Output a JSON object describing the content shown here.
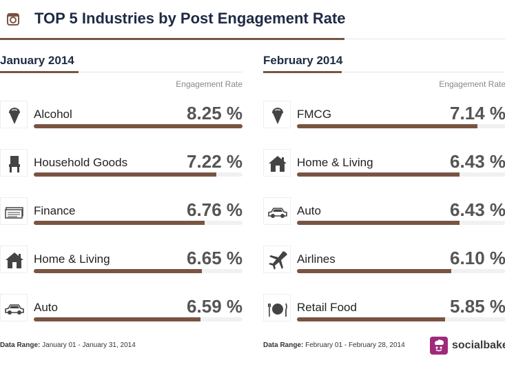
{
  "header": {
    "title": "TOP 5 Industries by Post Engagement Rate",
    "icon": "instagram-icon"
  },
  "column_label": "Engagement Rate",
  "chart_data": [
    {
      "type": "bar",
      "title": "January 2014",
      "ylabel": "Engagement Rate",
      "unit": "%",
      "ylim": [
        0,
        8.25
      ],
      "categories": [
        "Alcohol",
        "Household Goods",
        "Finance",
        "Home & Living",
        "Auto"
      ],
      "values": [
        8.25,
        7.22,
        6.76,
        6.65,
        6.59
      ],
      "value_labels": [
        "8.25 %",
        "7.22 %",
        "6.76 %",
        "6.65 %",
        "6.59 %"
      ],
      "icons": [
        "ice-cream-icon",
        "chair-icon",
        "money-icon",
        "house-icon",
        "car-icon"
      ]
    },
    {
      "type": "bar",
      "title": "February 2014",
      "ylabel": "Engagement Rate",
      "unit": "%",
      "ylim": [
        0,
        8.25
      ],
      "categories": [
        "FMCG",
        "Home & Living",
        "Auto",
        "Airlines",
        "Retail Food"
      ],
      "values": [
        7.14,
        6.43,
        6.43,
        6.1,
        5.85
      ],
      "value_labels": [
        "7.14 %",
        "6.43 %",
        "6.43 %",
        "6.10 %",
        "5.85 %"
      ],
      "icons": [
        "ice-cream-icon",
        "house-icon",
        "car-icon",
        "airplane-icon",
        "plate-cutlery-icon"
      ]
    }
  ],
  "footer": [
    {
      "label": "Data Range:",
      "range": "January 01 - January 31, 2014"
    },
    {
      "label": "Data Range:",
      "range": "February 01 - February 28, 2014"
    }
  ],
  "brand": {
    "name": "socialbakers",
    "icon": "socialbakers-logo-icon"
  },
  "colors": {
    "accent": "#7a5442",
    "title": "#1f2a44",
    "track": "#f1f1f1",
    "brand": "#9e2a7b"
  }
}
